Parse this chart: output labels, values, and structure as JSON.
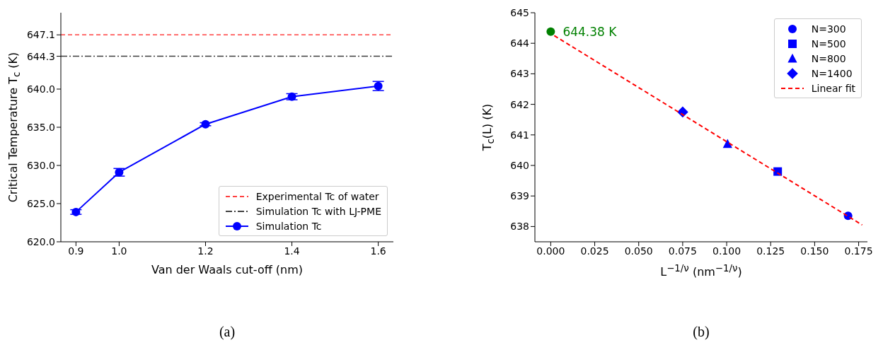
{
  "chart_data": [
    {
      "type": "line",
      "xlabel": "Van der Waals cut-off (nm)",
      "ylabel": "Critical Temperature T$_{c}$ (K)",
      "x": [
        0.9,
        1.0,
        1.2,
        1.4,
        1.6
      ],
      "xlim": [
        0.865,
        1.635
      ],
      "xticks": [
        0.9,
        {
          "value": 1.0,
          "label": "1.0"
        },
        1.2,
        1.4,
        1.6
      ],
      "ylim": [
        620,
        650
      ],
      "yticks": [
        {
          "value": 620,
          "label": "620.0"
        },
        {
          "value": 625,
          "label": "625.0"
        },
        {
          "value": 630,
          "label": "630.0"
        },
        {
          "value": 635,
          "label": "635.0"
        },
        {
          "value": 640,
          "label": "640.0"
        },
        644.3,
        647.1
      ],
      "grid": false,
      "legend": "bottom right",
      "series": [
        {
          "name": "Simulation Tc",
          "color": "#0000ff",
          "marker": "circle",
          "values": [
            623.9,
            629.1,
            635.4,
            639.0,
            640.4
          ],
          "errors": [
            0.3,
            0.5,
            0.2,
            0.4,
            0.6
          ]
        }
      ],
      "ref_lines": [
        {
          "axis": "y",
          "value": 647.1,
          "label": "Experimental Tc of water",
          "color": "#ff4040",
          "line_style": "dashed"
        },
        {
          "axis": "y",
          "value": 644.3,
          "label": "Simulation Tc with LJ-PME",
          "color": "#404040",
          "line_style": "dashdot"
        }
      ],
      "annotations": [
        "(a)"
      ]
    },
    {
      "type": "scatter",
      "xlabel": "L$^{−1/ν}$ (nm$^{−1/ν}$)",
      "ylabel": "T$_{c}$(L) (K)",
      "xlim": [
        -0.009,
        0.18
      ],
      "xticks": [
        {
          "value": 0,
          "label": "0.000"
        },
        0.025,
        {
          "value": 0.05,
          "label": "0.050"
        },
        0.075,
        {
          "value": 0.1,
          "label": "0.100"
        },
        0.125,
        {
          "value": 0.15,
          "label": "0.150"
        },
        0.175
      ],
      "ylim": [
        637.5,
        645
      ],
      "yticks": [
        638,
        639,
        640,
        641,
        642,
        643,
        644,
        645
      ],
      "grid": false,
      "legend": "top right",
      "series": [
        {
          "name": "N=300",
          "color": "#0000ff",
          "marker": "circle",
          "x": [
            0.169
          ],
          "values": [
            638.35
          ]
        },
        {
          "name": "N=500",
          "color": "#0000ff",
          "marker": "square",
          "x": [
            0.129
          ],
          "values": [
            639.8
          ]
        },
        {
          "name": "N=800",
          "color": "#0000ff",
          "marker": "triangle",
          "x": [
            0.1005
          ],
          "values": [
            640.7
          ]
        },
        {
          "name": "N=1400",
          "color": "#0000ff",
          "marker": "diamond",
          "x": [
            0.075
          ],
          "values": [
            641.75
          ]
        },
        {
          "name": "Linear fit",
          "type": "line",
          "color": "#ff0000",
          "marker": "none",
          "line_style": "dashed",
          "x": [
            0.002,
            0.177
          ],
          "values": [
            644.25,
            638.05
          ]
        },
        {
          "color": "#008000",
          "marker": "circle",
          "x": [
            0
          ],
          "values": [
            644.38
          ]
        }
      ],
      "annotations": [
        {
          "text": "644.38 K",
          "x": 0,
          "y": 644.38
        },
        "(b)"
      ]
    }
  ]
}
